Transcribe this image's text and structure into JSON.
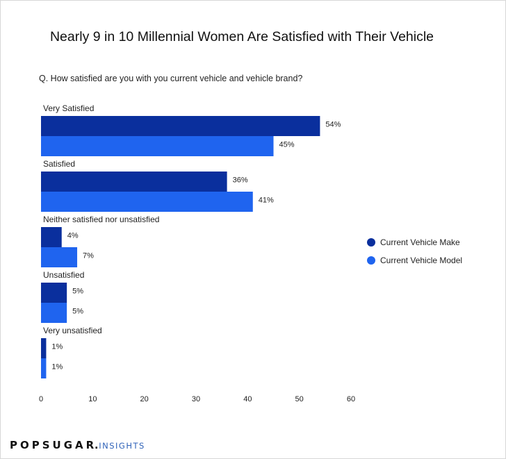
{
  "title": "Nearly 9 in 10 Millennial Women Are Satisfied with Their Vehicle",
  "question": "Q. How satisfied are you with you current vehicle and vehicle brand?",
  "colors": {
    "make": "#0a2f9d",
    "model": "#1f64ef"
  },
  "chart_data": {
    "type": "bar",
    "orientation": "horizontal",
    "categories": [
      "Very Satisfied",
      "Satisfied",
      "Neither satisfied nor unsatisfied",
      "Unsatisfied",
      "Very unsatisfied"
    ],
    "series": [
      {
        "name": "Current Vehicle Make",
        "values": [
          54,
          36,
          4,
          5,
          1
        ],
        "labels": [
          "54%",
          "36%",
          "4%",
          "5%",
          "1%"
        ]
      },
      {
        "name": "Current Vehicle Model",
        "values": [
          45,
          41,
          7,
          5,
          1
        ],
        "labels": [
          "45%",
          "41%",
          "7%",
          "5%",
          "1%"
        ]
      }
    ],
    "xlim": [
      0,
      60
    ],
    "xticks": [
      "0",
      "10",
      "20",
      "30",
      "40",
      "50",
      "60"
    ],
    "grid": false,
    "legend": "right"
  },
  "legend": {
    "make_label": "Current Vehicle Make",
    "model_label": "Current Vehicle Model"
  },
  "brand": {
    "main": "POPSUGAR",
    "dot": ".",
    "sub": "INSIGHTS"
  }
}
